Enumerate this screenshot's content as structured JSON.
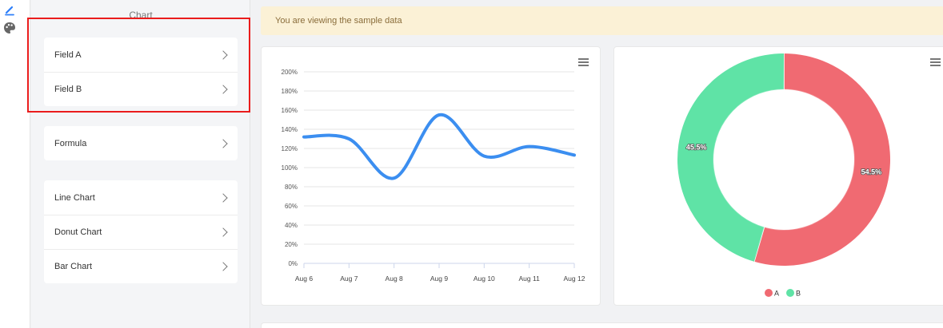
{
  "rail": {
    "icons": [
      "pencil-icon",
      "palette-icon"
    ]
  },
  "panel": {
    "title": "Chart",
    "fields": [
      {
        "label": "Field A"
      },
      {
        "label": "Field B"
      }
    ],
    "formula": {
      "label": "Formula"
    },
    "chart_types": [
      {
        "label": "Line Chart"
      },
      {
        "label": "Donut Chart"
      },
      {
        "label": "Bar Chart"
      }
    ],
    "highlight_color": "#ea1c1c"
  },
  "banner": {
    "text": "You are viewing the sample data"
  },
  "chart_data": [
    {
      "type": "line",
      "x": [
        "Aug 6",
        "Aug 7",
        "Aug 8",
        "Aug 9",
        "Aug 10",
        "Aug 11",
        "Aug 12"
      ],
      "series": [
        {
          "values": [
            132,
            130,
            89,
            155,
            112,
            122,
            113
          ],
          "color": "#3b8ef0"
        }
      ],
      "y_ticks": [
        "0%",
        "20%",
        "40%",
        "60%",
        "80%",
        "100%",
        "120%",
        "140%",
        "160%",
        "180%",
        "200%"
      ],
      "ylim": [
        0,
        200
      ],
      "y_unit": "%",
      "grid": true
    },
    {
      "type": "pie",
      "donut": true,
      "labels": [
        "A",
        "B"
      ],
      "values": [
        54.5,
        45.5
      ],
      "data_labels": [
        "54.5%",
        "45.5%"
      ],
      "colors": [
        "#f06a72",
        "#5fe3a6"
      ],
      "legend": "bottom"
    }
  ]
}
